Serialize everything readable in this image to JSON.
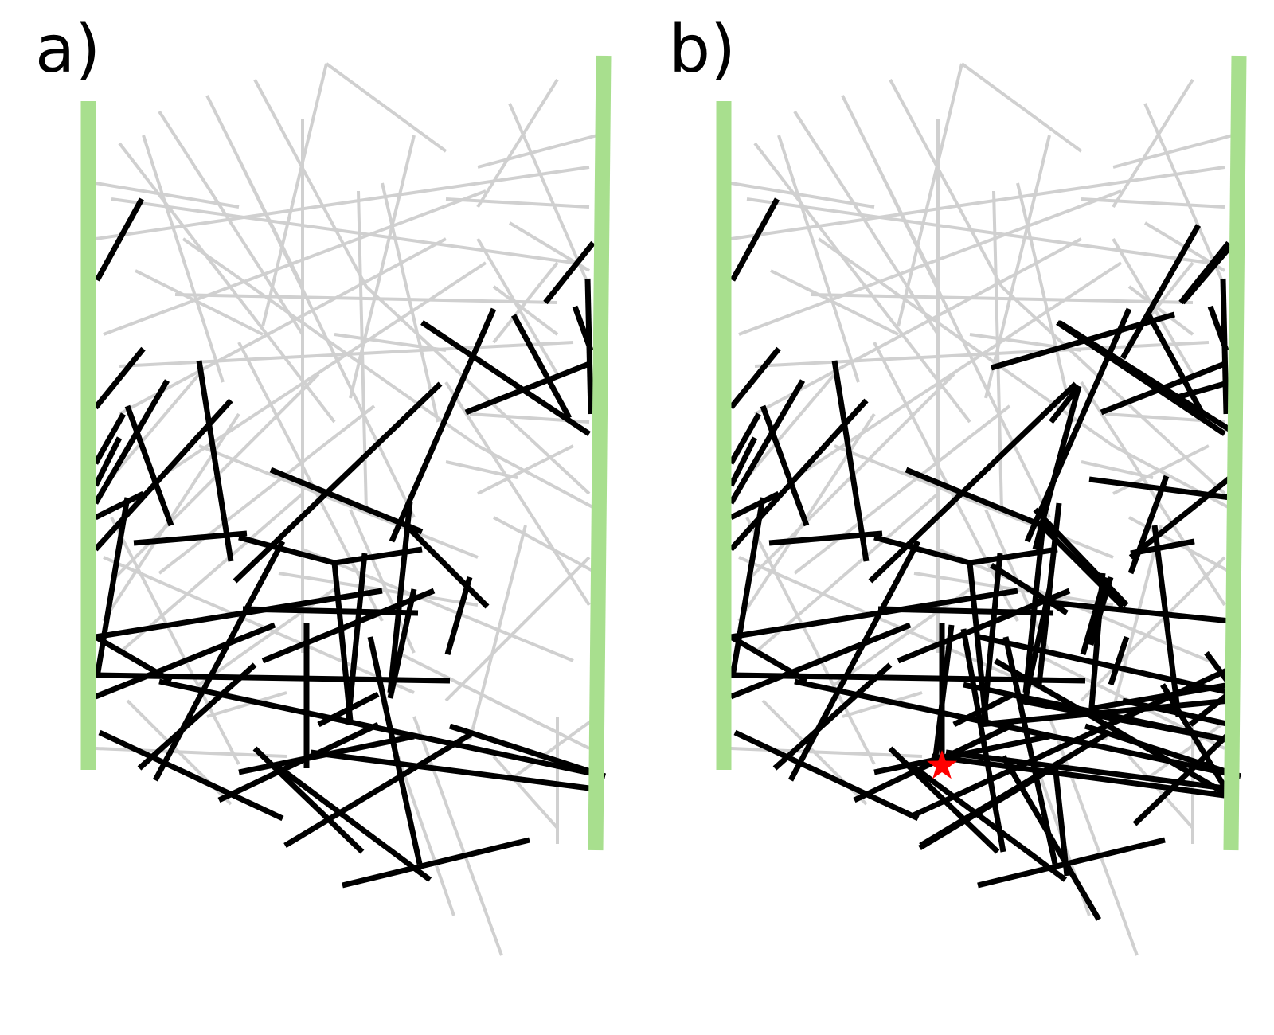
{
  "panels": [
    {
      "id": "a",
      "label": "a)",
      "marker": false
    },
    {
      "id": "b",
      "label": "b)",
      "marker": true
    }
  ],
  "colors": {
    "background_sticks": "#d0d0d0",
    "active_sticks": "#000000",
    "electrodes": "#a8df8e",
    "marker": "#ff0000"
  },
  "icons": {
    "marker": "star-icon"
  }
}
